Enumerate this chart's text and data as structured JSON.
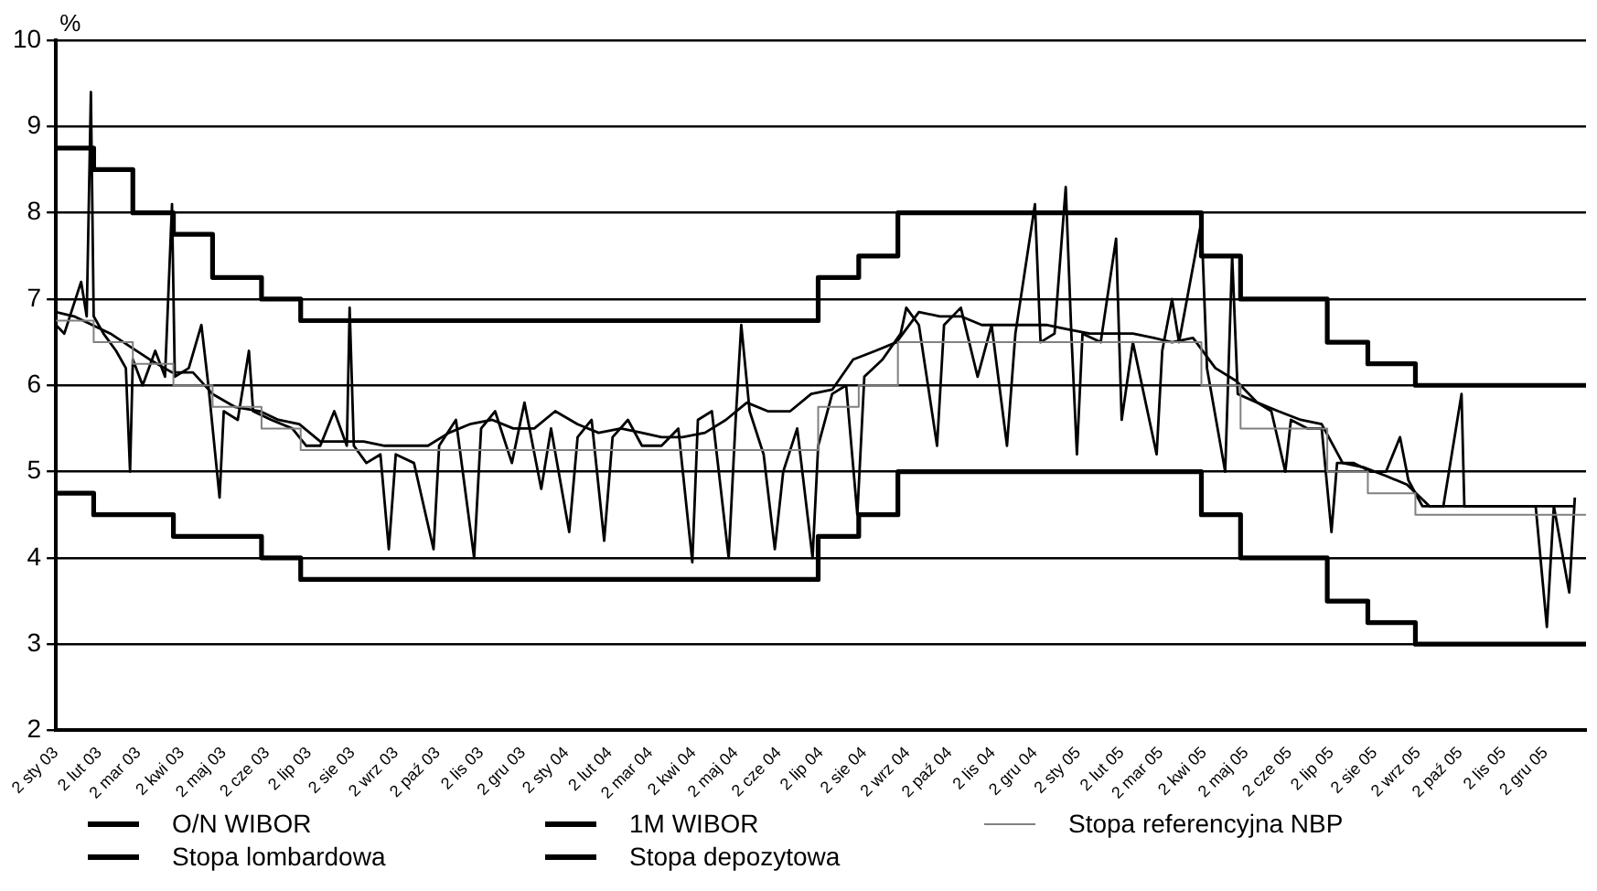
{
  "chart_data": {
    "type": "line",
    "ylabel": "%",
    "ylim": [
      2,
      10
    ],
    "yticks": [
      2,
      3,
      4,
      5,
      6,
      7,
      8,
      9,
      10
    ],
    "xlim": [
      "2003-01-02",
      "2005-12-31"
    ],
    "xticks": [
      {
        "value": "2003-01-02",
        "label": "2 sty 03"
      },
      {
        "value": "2003-02-02",
        "label": "2 lut 03"
      },
      {
        "value": "2003-03-02",
        "label": "2 mar 03"
      },
      {
        "value": "2003-04-02",
        "label": "2 kwi 03"
      },
      {
        "value": "2003-05-02",
        "label": "2 maj 03"
      },
      {
        "value": "2003-06-02",
        "label": "2 cze 03"
      },
      {
        "value": "2003-07-02",
        "label": "2 lip 03"
      },
      {
        "value": "2003-08-02",
        "label": "2 sie 03"
      },
      {
        "value": "2003-09-02",
        "label": "2 wrz 03"
      },
      {
        "value": "2003-10-02",
        "label": "2 paź 03"
      },
      {
        "value": "2003-11-02",
        "label": "2 lis 03"
      },
      {
        "value": "2003-12-02",
        "label": "2 gru 03"
      },
      {
        "value": "2004-01-02",
        "label": "2 sty 04"
      },
      {
        "value": "2004-02-02",
        "label": "2 lut 04"
      },
      {
        "value": "2004-03-02",
        "label": "2 mar 04"
      },
      {
        "value": "2004-04-02",
        "label": "2 kwi 04"
      },
      {
        "value": "2004-05-02",
        "label": "2 maj 04"
      },
      {
        "value": "2004-06-02",
        "label": "2 cze 04"
      },
      {
        "value": "2004-07-02",
        "label": "2 lip 04"
      },
      {
        "value": "2004-08-02",
        "label": "2 sie 04"
      },
      {
        "value": "2004-09-02",
        "label": "2 wrz 04"
      },
      {
        "value": "2004-10-02",
        "label": "2 paź 04"
      },
      {
        "value": "2004-11-02",
        "label": "2 lis 04"
      },
      {
        "value": "2004-12-02",
        "label": "2 gru 04"
      },
      {
        "value": "2005-01-02",
        "label": "2 sty 05"
      },
      {
        "value": "2005-02-02",
        "label": "2 lut 05"
      },
      {
        "value": "2005-03-02",
        "label": "2 mar 05"
      },
      {
        "value": "2005-04-02",
        "label": "2 kwi 05"
      },
      {
        "value": "2005-05-02",
        "label": "2 maj 05"
      },
      {
        "value": "2005-06-02",
        "label": "2 cze 05"
      },
      {
        "value": "2005-07-02",
        "label": "2 lip 05"
      },
      {
        "value": "2005-08-02",
        "label": "2 sie 05"
      },
      {
        "value": "2005-09-02",
        "label": "2 wrz 05"
      },
      {
        "value": "2005-10-02",
        "label": "2 paź 05"
      },
      {
        "value": "2005-11-02",
        "label": "2 lis 05"
      },
      {
        "value": "2005-12-02",
        "label": "2 gru 05"
      }
    ],
    "grid": "y",
    "legend": "bottom",
    "marker": "none",
    "series": [
      {
        "name": "O/N WIBOR",
        "type": "line",
        "color": "#000000",
        "x": [
          "2003-01-02",
          "2003-01-08",
          "2003-01-14",
          "2003-01-20",
          "2003-01-24",
          "2003-01-27",
          "2003-01-29",
          "2003-02-05",
          "2003-02-14",
          "2003-02-21",
          "2003-02-24",
          "2003-02-26",
          "2003-03-05",
          "2003-03-14",
          "2003-03-21",
          "2003-03-26",
          "2003-03-28",
          "2003-04-07",
          "2003-04-16",
          "2003-04-21",
          "2003-04-29",
          "2003-05-02",
          "2003-05-12",
          "2003-05-20",
          "2003-05-23",
          "2003-06-05",
          "2003-06-20",
          "2003-06-30",
          "2003-07-10",
          "2003-07-20",
          "2003-07-29",
          "2003-07-31",
          "2003-08-03",
          "2003-08-12",
          "2003-08-22",
          "2003-08-28",
          "2003-09-02",
          "2003-09-15",
          "2003-09-29",
          "2003-10-03",
          "2003-10-15",
          "2003-10-28",
          "2003-11-02",
          "2003-11-12",
          "2003-11-24",
          "2003-12-03",
          "2003-12-15",
          "2003-12-22",
          "2004-01-04",
          "2004-01-10",
          "2004-01-20",
          "2004-01-29",
          "2004-02-04",
          "2004-02-15",
          "2004-02-25",
          "2004-03-10",
          "2004-03-22",
          "2004-04-01",
          "2004-04-05",
          "2004-04-15",
          "2004-04-27",
          "2004-05-02",
          "2004-05-06",
          "2004-05-12",
          "2004-05-22",
          "2004-05-30",
          "2004-06-05",
          "2004-06-15",
          "2004-06-26",
          "2004-06-30",
          "2004-07-10",
          "2004-07-20",
          "2004-07-28",
          "2004-08-02",
          "2004-08-15",
          "2004-08-28",
          "2004-09-01",
          "2004-09-10",
          "2004-09-23",
          "2004-09-28",
          "2004-10-10",
          "2004-10-22",
          "2004-11-01",
          "2004-11-12",
          "2004-11-18",
          "2004-12-02",
          "2004-12-06",
          "2004-12-16",
          "2004-12-24",
          "2004-12-28",
          "2005-01-01",
          "2005-01-05",
          "2005-01-18",
          "2005-01-29",
          "2005-02-02",
          "2005-02-10",
          "2005-02-27",
          "2005-03-03",
          "2005-03-10",
          "2005-03-15",
          "2005-03-31",
          "2005-04-04",
          "2005-04-17",
          "2005-04-22",
          "2005-04-26",
          "2005-05-10",
          "2005-05-20",
          "2005-05-30",
          "2005-06-03",
          "2005-06-15",
          "2005-06-25",
          "2005-07-02",
          "2005-07-06",
          "2005-07-18",
          "2005-07-30",
          "2005-08-10",
          "2005-08-20",
          "2005-08-26",
          "2005-09-05",
          "2005-09-20",
          "2005-10-03",
          "2005-10-05",
          "2005-10-20",
          "2005-11-10",
          "2005-11-25",
          "2005-12-03",
          "2005-12-08",
          "2005-12-19",
          "2005-12-23"
        ],
        "values": [
          6.7,
          6.6,
          6.9,
          7.2,
          6.8,
          9.4,
          6.8,
          6.6,
          6.4,
          6.2,
          5.0,
          6.3,
          6.0,
          6.4,
          6.1,
          8.1,
          6.1,
          6.2,
          6.7,
          6.0,
          4.7,
          5.7,
          5.6,
          6.4,
          5.7,
          5.6,
          5.5,
          5.3,
          5.3,
          5.7,
          5.3,
          6.9,
          5.3,
          5.1,
          5.2,
          4.1,
          5.2,
          5.1,
          4.1,
          5.3,
          5.6,
          4.0,
          5.5,
          5.7,
          5.1,
          5.8,
          4.8,
          5.5,
          4.3,
          5.4,
          5.6,
          4.2,
          5.4,
          5.6,
          5.3,
          5.3,
          5.5,
          3.95,
          5.6,
          5.7,
          4.0,
          5.6,
          6.7,
          5.7,
          5.2,
          4.1,
          5.0,
          5.5,
          4.0,
          5.3,
          5.9,
          6.0,
          4.5,
          6.1,
          6.3,
          6.6,
          6.9,
          6.7,
          5.3,
          6.7,
          6.9,
          6.1,
          6.7,
          5.3,
          6.6,
          8.1,
          6.5,
          6.6,
          8.3,
          6.6,
          5.2,
          6.6,
          6.5,
          7.7,
          5.6,
          6.5,
          5.2,
          6.4,
          7.0,
          6.5,
          7.9,
          6.2,
          5.0,
          7.5,
          5.9,
          5.8,
          5.7,
          5.0,
          5.6,
          5.5,
          5.5,
          4.3,
          5.1,
          5.1,
          5.0,
          5.0,
          5.4,
          4.9,
          4.6,
          4.6,
          5.9,
          4.6,
          4.6,
          4.6,
          4.6,
          3.2,
          4.6,
          3.6,
          4.7
        ]
      },
      {
        "name": "1M WIBOR",
        "type": "line",
        "color": "#000000",
        "x": [
          "2003-01-02",
          "2003-01-15",
          "2003-01-28",
          "2003-02-10",
          "2003-02-24",
          "2003-03-10",
          "2003-03-26",
          "2003-04-10",
          "2003-04-24",
          "2003-05-10",
          "2003-05-28",
          "2003-06-10",
          "2003-06-25",
          "2003-07-10",
          "2003-07-25",
          "2003-08-10",
          "2003-08-25",
          "2003-09-10",
          "2003-09-25",
          "2003-10-10",
          "2003-10-25",
          "2003-11-10",
          "2003-11-25",
          "2003-12-10",
          "2003-12-25",
          "2004-01-10",
          "2004-01-25",
          "2004-02-10",
          "2004-02-25",
          "2004-03-10",
          "2004-03-25",
          "2004-04-10",
          "2004-04-25",
          "2004-05-10",
          "2004-05-25",
          "2004-06-10",
          "2004-06-25",
          "2004-07-10",
          "2004-07-25",
          "2004-08-10",
          "2004-08-25",
          "2004-09-10",
          "2004-09-25",
          "2004-10-10",
          "2004-10-25",
          "2004-11-10",
          "2004-11-25",
          "2004-12-10",
          "2004-12-25",
          "2005-01-10",
          "2005-01-25",
          "2005-02-10",
          "2005-02-25",
          "2005-03-10",
          "2005-03-25",
          "2005-04-10",
          "2005-04-25",
          "2005-05-10",
          "2005-05-25",
          "2005-06-10",
          "2005-06-25",
          "2005-07-10",
          "2005-07-25",
          "2005-08-10",
          "2005-08-25",
          "2005-09-10",
          "2005-09-25",
          "2005-10-10",
          "2005-10-25",
          "2005-11-10",
          "2005-11-25",
          "2005-12-10",
          "2005-12-23"
        ],
        "values": [
          6.85,
          6.8,
          6.7,
          6.6,
          6.45,
          6.3,
          6.15,
          6.15,
          5.9,
          5.75,
          5.7,
          5.6,
          5.55,
          5.35,
          5.35,
          5.35,
          5.3,
          5.3,
          5.3,
          5.45,
          5.55,
          5.6,
          5.5,
          5.5,
          5.7,
          5.55,
          5.45,
          5.5,
          5.45,
          5.4,
          5.4,
          5.45,
          5.6,
          5.8,
          5.7,
          5.7,
          5.9,
          5.95,
          6.3,
          6.4,
          6.5,
          6.85,
          6.8,
          6.8,
          6.7,
          6.7,
          6.7,
          6.7,
          6.65,
          6.6,
          6.6,
          6.6,
          6.55,
          6.5,
          6.55,
          6.2,
          6.05,
          5.8,
          5.7,
          5.6,
          5.55,
          5.1,
          5.05,
          4.95,
          4.85,
          4.6,
          4.6,
          4.6,
          4.6,
          4.6,
          4.6,
          4.6,
          4.6
        ]
      },
      {
        "name": "Stopa referencyjna NBP",
        "type": "step",
        "color": "#808080",
        "x": [
          "2003-01-02",
          "2003-01-29",
          "2003-02-26",
          "2003-03-27",
          "2003-04-24",
          "2003-05-29",
          "2003-06-26",
          "2004-06-30",
          "2004-07-29",
          "2004-08-26",
          "2005-03-31",
          "2005-04-28",
          "2005-06-29",
          "2005-07-28",
          "2005-08-31",
          "2005-12-31"
        ],
        "values": [
          6.75,
          6.5,
          6.25,
          6.0,
          5.75,
          5.5,
          5.25,
          5.75,
          6.0,
          6.5,
          6.0,
          5.5,
          5.0,
          4.75,
          4.5,
          4.5
        ]
      },
      {
        "name": "Stopa lombardowa",
        "type": "step",
        "color": "#000000",
        "x": [
          "2003-01-02",
          "2003-01-29",
          "2003-02-26",
          "2003-03-27",
          "2003-04-24",
          "2003-05-29",
          "2003-06-26",
          "2004-06-30",
          "2004-07-29",
          "2004-08-26",
          "2005-03-31",
          "2005-04-28",
          "2005-06-29",
          "2005-07-28",
          "2005-08-31",
          "2005-12-31"
        ],
        "values": [
          8.75,
          8.5,
          8.0,
          7.75,
          7.25,
          7.0,
          6.75,
          7.25,
          7.5,
          8.0,
          7.5,
          7.0,
          6.5,
          6.25,
          6.0,
          6.0
        ]
      },
      {
        "name": "Stopa depozytowa",
        "type": "step",
        "color": "#000000",
        "x": [
          "2003-01-02",
          "2003-01-29",
          "2003-03-27",
          "2003-05-29",
          "2003-06-26",
          "2004-06-30",
          "2004-07-29",
          "2004-08-26",
          "2005-03-31",
          "2005-04-28",
          "2005-06-29",
          "2005-07-28",
          "2005-08-31",
          "2005-12-31"
        ],
        "values": [
          4.75,
          4.5,
          4.25,
          4.0,
          3.75,
          4.25,
          4.5,
          5.0,
          4.5,
          4.0,
          3.5,
          3.25,
          3.0,
          3.0
        ]
      }
    ]
  }
}
